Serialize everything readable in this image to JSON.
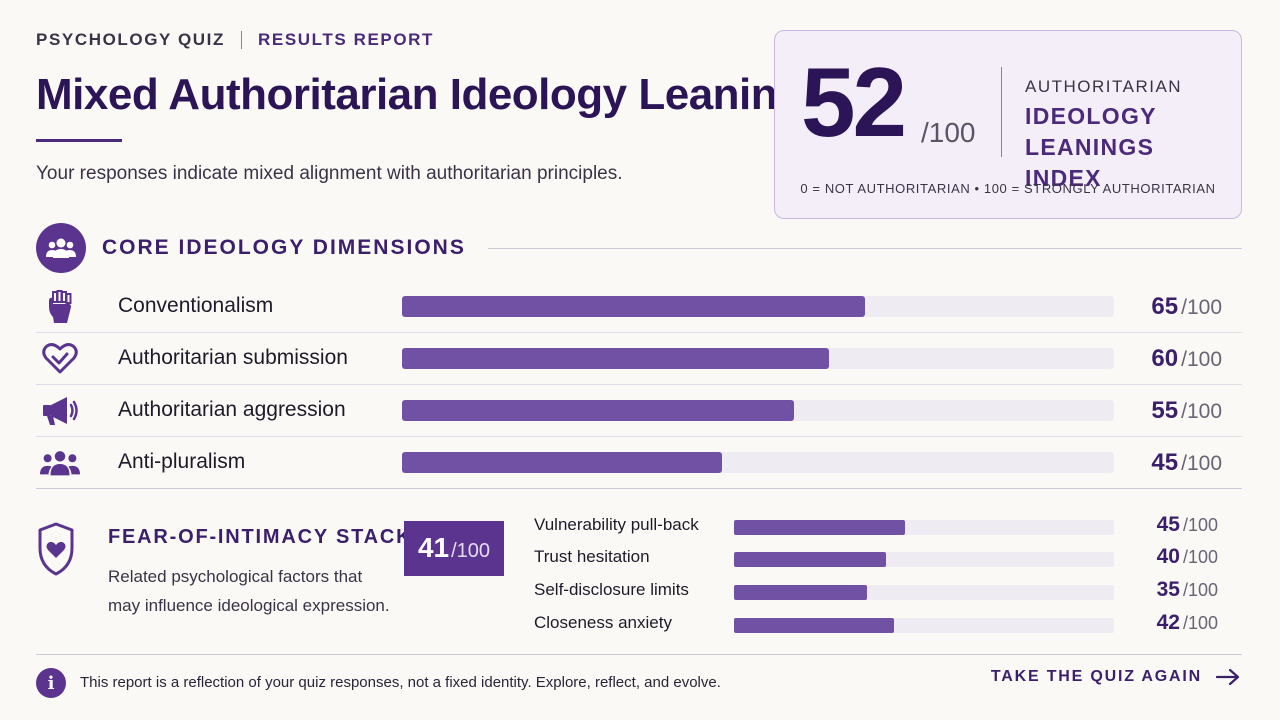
{
  "header": {
    "eyebrow_left": "PSYCHOLOGY QUIZ",
    "eyebrow_right": "RESULTS REPORT",
    "title": "Mixed Authoritarian Ideology Leanings",
    "subtitle": "Your responses indicate mixed alignment with authoritarian principles."
  },
  "score_card": {
    "score": "52",
    "out_of": "/100",
    "label_top": "AUTHORITARIAN",
    "label_main": "IDEOLOGY LEANINGS INDEX",
    "scale_note": "0 = NOT AUTHORITARIAN  •  100 = STRONGLY AUTHORITARIAN"
  },
  "core_section": {
    "title": "CORE IDEOLOGY DIMENSIONS",
    "icon": "people-group-icon",
    "dimensions": [
      {
        "label": "Conventionalism",
        "score": "65",
        "max": "/100",
        "value": 65,
        "icon": "raised-fist-icon"
      },
      {
        "label": "Authoritarian submission",
        "score": "60",
        "max": "/100",
        "value": 60,
        "icon": "heart-check-icon"
      },
      {
        "label": "Authoritarian aggression",
        "score": "55",
        "max": "/100",
        "value": 55,
        "icon": "megaphone-icon"
      },
      {
        "label": "Anti-pluralism",
        "score": "45",
        "max": "/100",
        "value": 45,
        "icon": "group-icon"
      }
    ]
  },
  "fear_section": {
    "title": "FEAR-OF-INTIMACY STACK",
    "description": "Related psychological factors that may influence ideological expression.",
    "icon": "shield-heart-icon",
    "score": "41",
    "out_of": "/100",
    "factors": [
      {
        "label": "Vulnerability pull-back",
        "score": "45",
        "max": "/100",
        "value": 45
      },
      {
        "label": "Trust hesitation",
        "score": "40",
        "max": "/100",
        "value": 40
      },
      {
        "label": "Self-disclosure limits",
        "score": "35",
        "max": "/100",
        "value": 35
      },
      {
        "label": "Closeness anxiety",
        "score": "42",
        "max": "/100",
        "value": 42
      }
    ]
  },
  "footer": {
    "icon": "info-icon",
    "note": "This report is a reflection of your quiz responses, not a fixed identity. Explore, reflect, and evolve.",
    "cta_label": "TAKE THE QUIZ AGAIN",
    "cta_icon": "arrow-right-icon"
  },
  "colors": {
    "accent": "#5b3490",
    "bar_fill": "#7151a4",
    "bar_track": "#efebf3",
    "title": "#2b1556",
    "background": "#fbf9f5"
  }
}
